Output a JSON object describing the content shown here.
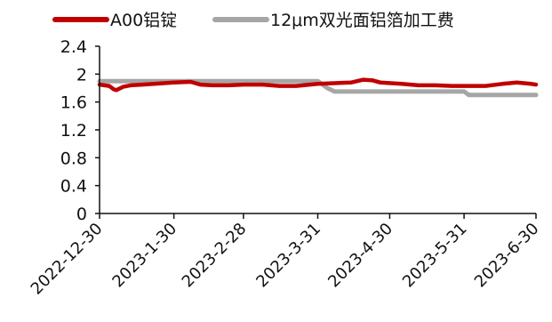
{
  "chart_data": {
    "type": "line",
    "title": "",
    "xlabel": "",
    "ylabel": "",
    "ylim": [
      0,
      2.4
    ],
    "yticks": [
      "0",
      "0.4",
      "0.8",
      "1.2",
      "1.6",
      "2",
      "2.4"
    ],
    "x_range": [
      "2022-12-30",
      "2023-06-30"
    ],
    "xticks": [
      "2022-12-30",
      "2023-1-30",
      "2023-2-28",
      "2023-3-31",
      "2023-4-30",
      "2023-5-31",
      "2023-6-30"
    ],
    "grid": false,
    "legend_position": "top",
    "series": [
      {
        "name": "A00铝锭",
        "color": "#c00000",
        "points": [
          [
            "2022-12-30",
            1.85
          ],
          [
            "2023-01-03",
            1.83
          ],
          [
            "2023-01-05",
            1.78
          ],
          [
            "2023-01-06",
            1.77
          ],
          [
            "2023-01-09",
            1.82
          ],
          [
            "2023-01-12",
            1.84
          ],
          [
            "2023-01-17",
            1.85
          ],
          [
            "2023-01-30",
            1.88
          ],
          [
            "2023-02-06",
            1.89
          ],
          [
            "2023-02-10",
            1.85
          ],
          [
            "2023-02-15",
            1.84
          ],
          [
            "2023-02-22",
            1.84
          ],
          [
            "2023-02-28",
            1.85
          ],
          [
            "2023-03-08",
            1.85
          ],
          [
            "2023-03-15",
            1.83
          ],
          [
            "2023-03-22",
            1.83
          ],
          [
            "2023-03-31",
            1.86
          ],
          [
            "2023-04-07",
            1.87
          ],
          [
            "2023-04-14",
            1.88
          ],
          [
            "2023-04-19",
            1.92
          ],
          [
            "2023-04-23",
            1.91
          ],
          [
            "2023-04-26",
            1.88
          ],
          [
            "2023-05-05",
            1.86
          ],
          [
            "2023-05-12",
            1.84
          ],
          [
            "2023-05-19",
            1.84
          ],
          [
            "2023-05-26",
            1.83
          ],
          [
            "2023-06-02",
            1.83
          ],
          [
            "2023-06-09",
            1.83
          ],
          [
            "2023-06-16",
            1.86
          ],
          [
            "2023-06-22",
            1.88
          ],
          [
            "2023-06-28",
            1.86
          ],
          [
            "2023-06-30",
            1.85
          ]
        ]
      },
      {
        "name": "12μm双光面铝箔加工费",
        "color": "#a6a6a6",
        "points": [
          [
            "2022-12-30",
            1.9
          ],
          [
            "2023-01-17",
            1.9
          ],
          [
            "2023-03-31",
            1.9
          ],
          [
            "2023-04-04",
            1.8
          ],
          [
            "2023-04-07",
            1.75
          ],
          [
            "2023-05-31",
            1.75
          ],
          [
            "2023-06-02",
            1.7
          ],
          [
            "2023-06-30",
            1.7
          ]
        ]
      }
    ]
  }
}
